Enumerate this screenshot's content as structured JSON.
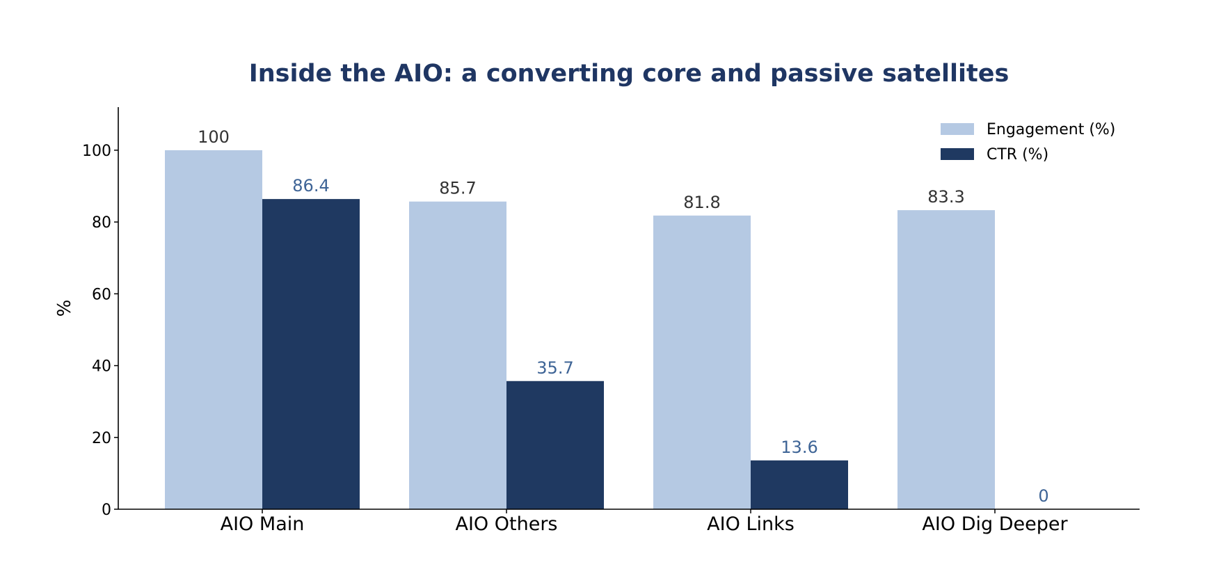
{
  "chart_data": {
    "type": "bar",
    "title": "Inside the AIO: a converting core and passive satellites",
    "xlabel": "",
    "ylabel": "%",
    "ylim": [
      0,
      112
    ],
    "yticks": [
      0,
      20,
      40,
      60,
      80,
      100
    ],
    "categories": [
      "AIO Main",
      "AIO Others",
      "AIO Links",
      "AIO Dig Deeper"
    ],
    "series": [
      {
        "name": "Engagement (%)",
        "values": [
          100,
          85.7,
          81.8,
          83.3
        ],
        "labels": [
          "100",
          "85.7",
          "81.8",
          "83.3"
        ],
        "color": "#b5c9e3",
        "label_color": "#333333"
      },
      {
        "name": "CTR (%)",
        "values": [
          86.4,
          35.7,
          13.6,
          0
        ],
        "labels": [
          "86.4",
          "35.7",
          "13.6",
          "0"
        ],
        "color": "#1f3961",
        "label_color": "#3e6496"
      }
    ],
    "grid": false,
    "legend_position": "top-right",
    "title_color": "#1f3663"
  }
}
